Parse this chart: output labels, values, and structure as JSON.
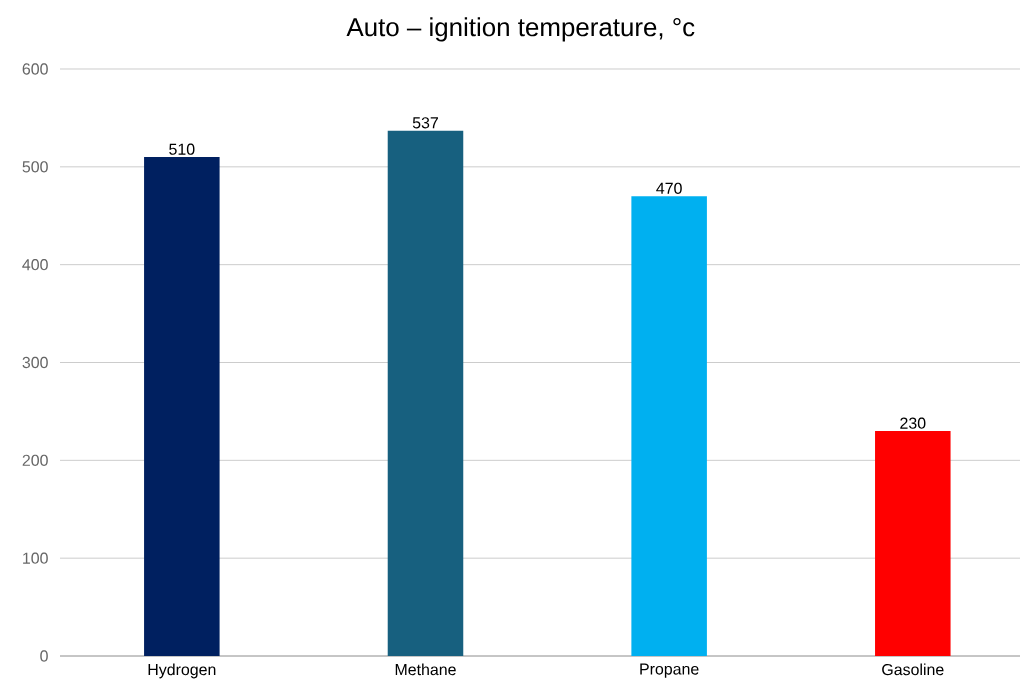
{
  "chart_data": {
    "type": "bar",
    "title": "Auto – ignition temperature, °c",
    "categories": [
      "Hydrogen",
      "Methane",
      "Propane",
      "Gasoline"
    ],
    "values": [
      510,
      537,
      470,
      230
    ],
    "colors": [
      "#002060",
      "#17607f",
      "#00b0f0",
      "#ff0000"
    ],
    "ylim": [
      0,
      600
    ],
    "yticks": [
      0,
      100,
      200,
      300,
      400,
      500,
      600
    ],
    "grid": "y",
    "data_labels": true
  }
}
